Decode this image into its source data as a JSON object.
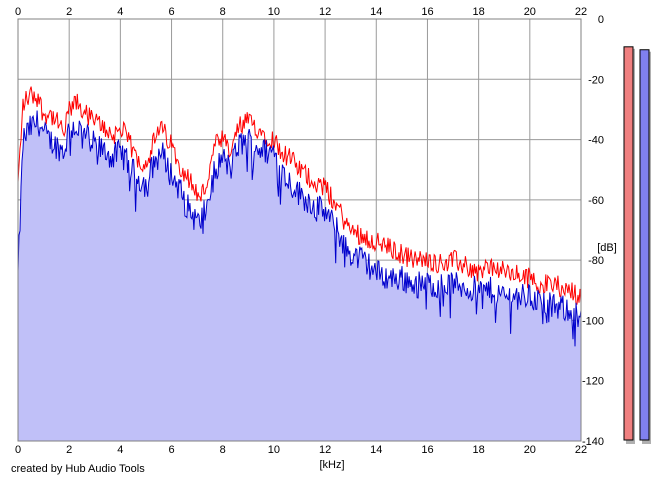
{
  "chart_data": {
    "type": "area",
    "title": "",
    "x_unit": "[kHz]",
    "y_unit": "[dB]",
    "xlim": [
      0,
      22
    ],
    "ylim": [
      -140,
      0
    ],
    "x_ticks": [
      0,
      2,
      4,
      6,
      8,
      10,
      12,
      14,
      16,
      18,
      20,
      22
    ],
    "y_ticks": [
      0,
      -20,
      -40,
      -60,
      -80,
      -100,
      -120,
      -140
    ],
    "grid": true,
    "series": [
      {
        "color": "#ff0000",
        "x": [
          0,
          0.2,
          0.5,
          0.8,
          1,
          1.2,
          1.5,
          1.8,
          2,
          2.3,
          2.6,
          3,
          3.4,
          3.7,
          4,
          4.3,
          4.6,
          5,
          5.3,
          5.6,
          6,
          6.3,
          6.6,
          6.9,
          7.1,
          7.4,
          7.7,
          8,
          8.3,
          8.6,
          9,
          9.3,
          9.6,
          10,
          10.3,
          10.6,
          11,
          11.3,
          11.6,
          12,
          12.3,
          12.6,
          12.8,
          13,
          13.5,
          14,
          14.5,
          15,
          15.5,
          16,
          16.5,
          17,
          17.5,
          18,
          18.5,
          19,
          19.5,
          20,
          20.5,
          21,
          21.5,
          22
        ],
        "values": [
          -55,
          -28,
          -25,
          -26,
          -32,
          -31,
          -34,
          -38,
          -30,
          -28,
          -31,
          -34,
          -36,
          -39,
          -36,
          -40,
          -46,
          -48,
          -41,
          -36,
          -42,
          -48,
          -52,
          -56,
          -60,
          -54,
          -42,
          -40,
          -45,
          -36,
          -34,
          -36,
          -38,
          -40,
          -44,
          -46,
          -50,
          -52,
          -54,
          -56,
          -60,
          -64,
          -68,
          -70,
          -72,
          -74,
          -76,
          -78,
          -80,
          -80,
          -81,
          -80,
          -82,
          -84,
          -82,
          -84,
          -85,
          -86,
          -88,
          -88,
          -90,
          -92
        ]
      },
      {
        "color": "#0000cc",
        "x": [
          0,
          0.2,
          0.5,
          0.8,
          1,
          1.2,
          1.5,
          1.8,
          2,
          2.3,
          2.6,
          3,
          3.4,
          3.7,
          4,
          4.3,
          4.6,
          5,
          5.3,
          5.6,
          6,
          6.3,
          6.6,
          6.9,
          7.1,
          7.4,
          7.7,
          8,
          8.3,
          8.6,
          9,
          9.3,
          9.6,
          10,
          10.3,
          10.6,
          11,
          11.3,
          11.6,
          12,
          12.3,
          12.6,
          12.8,
          13,
          13.5,
          14,
          14.5,
          15,
          15.5,
          16,
          16.5,
          17,
          17.5,
          18,
          18.5,
          19,
          19.5,
          20,
          20.5,
          21,
          21.5,
          22
        ],
        "values": [
          -85,
          -40,
          -36,
          -34,
          -38,
          -40,
          -42,
          -44,
          -36,
          -36,
          -38,
          -42,
          -44,
          -46,
          -44,
          -48,
          -52,
          -55,
          -48,
          -44,
          -52,
          -56,
          -62,
          -66,
          -68,
          -62,
          -50,
          -46,
          -50,
          -42,
          -40,
          -42,
          -44,
          -44,
          -50,
          -54,
          -58,
          -60,
          -62,
          -64,
          -68,
          -72,
          -76,
          -78,
          -80,
          -84,
          -86,
          -86,
          -88,
          -88,
          -88,
          -88,
          -89,
          -90,
          -90,
          -92,
          -92,
          -92,
          -94,
          -96,
          -96,
          -98
        ]
      }
    ],
    "level_meters": {
      "ylim": [
        -140,
        0
      ],
      "values": [
        -3,
        -4
      ],
      "colors": [
        "#f08080",
        "#8080f0"
      ]
    }
  },
  "credit": "created by Hub Audio Tools"
}
